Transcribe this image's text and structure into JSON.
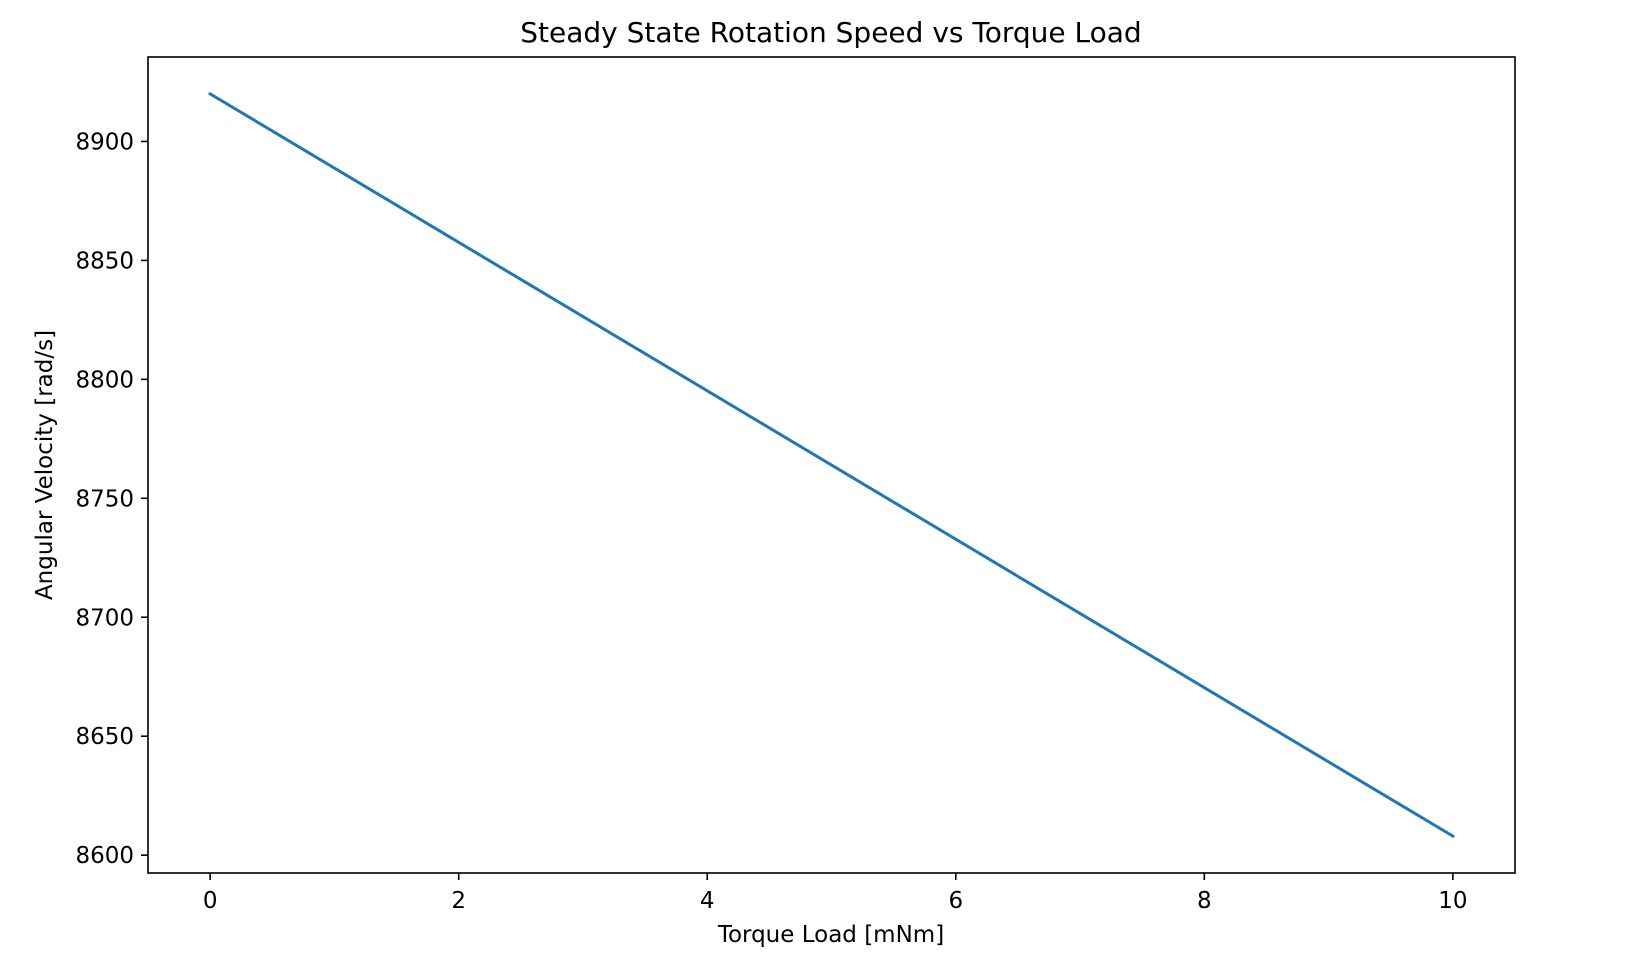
{
  "chart_data": {
    "type": "line",
    "title": "Steady State Rotation Speed vs Torque Load",
    "xlabel": "Torque Load [mNm]",
    "ylabel": "Angular Velocity [rad/s]",
    "xlim": [
      -0.5,
      10.5
    ],
    "ylim": [
      8592.5,
      8935.5
    ],
    "xticks": [
      0,
      2,
      4,
      6,
      8,
      10
    ],
    "xtick_labels": [
      "0",
      "2",
      "4",
      "6",
      "8",
      "10"
    ],
    "yticks": [
      8600,
      8650,
      8700,
      8750,
      8800,
      8850,
      8900
    ],
    "ytick_labels": [
      "8600",
      "8650",
      "8700",
      "8750",
      "8800",
      "8850",
      "8900"
    ],
    "grid": false,
    "legend": "none",
    "series": [
      {
        "color": "#1f77b4",
        "x": [
          0,
          10
        ],
        "y": [
          8920,
          8608
        ]
      }
    ]
  }
}
